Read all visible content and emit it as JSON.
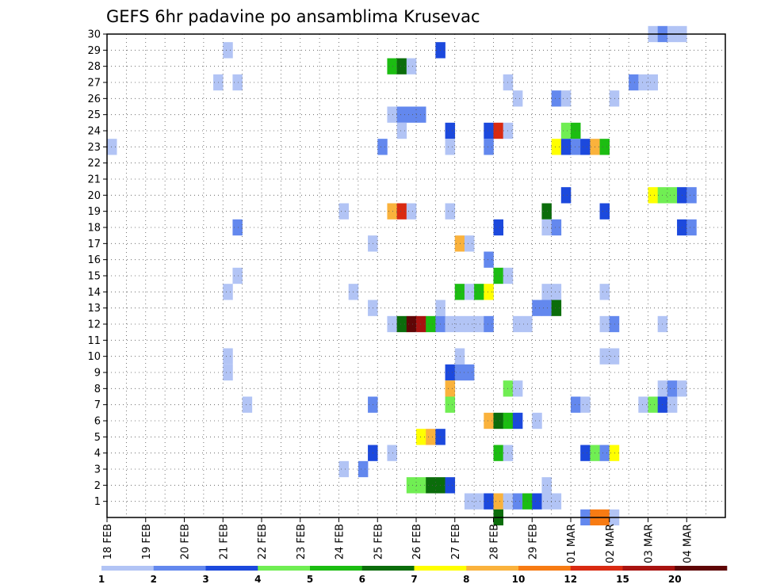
{
  "chart_data": {
    "type": "heatmap",
    "title": "GEFS 6hr padavine po ansamblima Krusevac",
    "xlabel": "",
    "ylabel": "",
    "x_ticks": [
      "18 FEB",
      "19 FEB",
      "20 FEB",
      "21 FEB",
      "22 FEB",
      "23 FEB",
      "24 FEB",
      "25 FEB",
      "26 FEB",
      "27 FEB",
      "28 FEB",
      "29 FEB",
      "01 MAR",
      "02 MAR",
      "03 MAR",
      "04 MAR"
    ],
    "y_ticks": [
      "1",
      "2",
      "3",
      "4",
      "5",
      "6",
      "7",
      "8",
      "9",
      "10",
      "11",
      "12",
      "13",
      "14",
      "15",
      "16",
      "17",
      "18",
      "19",
      "20",
      "21",
      "22",
      "23",
      "24",
      "25",
      "26",
      "27",
      "28",
      "29",
      "30"
    ],
    "xlim": [
      0,
      16
    ],
    "ylim": [
      0,
      30
    ],
    "time_step_days": 0.25,
    "member_axis": "y",
    "legend": {
      "placement": "bottom",
      "levels": [
        "1",
        "2",
        "3",
        "4",
        "5",
        "6",
        "7",
        "8",
        "10",
        "12",
        "15",
        "20"
      ],
      "colors": [
        "#b2c4f5",
        "#6388ee",
        "#1c49dd",
        "#70ee53",
        "#1cbd12",
        "#0b6d0b",
        "#ffff00",
        "#fab23c",
        "#f77b13",
        "#d92a12",
        "#a81310",
        "#5f0606"
      ]
    },
    "cells": [
      {
        "m": 30,
        "t": 14.0,
        "c": 1
      },
      {
        "m": 30,
        "t": 14.25,
        "c": 2
      },
      {
        "m": 30,
        "t": 14.5,
        "c": 1
      },
      {
        "m": 30,
        "t": 14.75,
        "c": 1
      },
      {
        "m": 29,
        "t": 3.0,
        "c": 1
      },
      {
        "m": 29,
        "t": 8.5,
        "c": 3
      },
      {
        "m": 28,
        "t": 7.25,
        "c": 5
      },
      {
        "m": 28,
        "t": 7.5,
        "c": 6
      },
      {
        "m": 28,
        "t": 7.75,
        "c": 1
      },
      {
        "m": 27,
        "t": 2.75,
        "c": 1
      },
      {
        "m": 27,
        "t": 3.25,
        "c": 1
      },
      {
        "m": 27,
        "t": 10.25,
        "c": 1
      },
      {
        "m": 27,
        "t": 13.5,
        "c": 2
      },
      {
        "m": 27,
        "t": 13.75,
        "c": 1
      },
      {
        "m": 27,
        "t": 14.0,
        "c": 1
      },
      {
        "m": 26,
        "t": 10.5,
        "c": 1
      },
      {
        "m": 26,
        "t": 11.5,
        "c": 2
      },
      {
        "m": 26,
        "t": 11.75,
        "c": 1
      },
      {
        "m": 26,
        "t": 13.0,
        "c": 1
      },
      {
        "m": 25,
        "t": 7.25,
        "c": 1
      },
      {
        "m": 25,
        "t": 7.5,
        "c": 2
      },
      {
        "m": 25,
        "t": 7.75,
        "c": 2
      },
      {
        "m": 25,
        "t": 8.0,
        "c": 2
      },
      {
        "m": 24,
        "t": 7.5,
        "c": 1
      },
      {
        "m": 24,
        "t": 8.75,
        "c": 3
      },
      {
        "m": 24,
        "t": 9.75,
        "c": 3
      },
      {
        "m": 24,
        "t": 10.0,
        "c": 10
      },
      {
        "m": 24,
        "t": 10.25,
        "c": 1
      },
      {
        "m": 24,
        "t": 11.75,
        "c": 4
      },
      {
        "m": 24,
        "t": 12.0,
        "c": 5
      },
      {
        "m": 23,
        "t": 0.0,
        "c": 1
      },
      {
        "m": 23,
        "t": 7.0,
        "c": 2
      },
      {
        "m": 23,
        "t": 8.75,
        "c": 1
      },
      {
        "m": 23,
        "t": 9.75,
        "c": 2
      },
      {
        "m": 23,
        "t": 11.5,
        "c": 7
      },
      {
        "m": 23,
        "t": 11.75,
        "c": 3
      },
      {
        "m": 23,
        "t": 12.0,
        "c": 2
      },
      {
        "m": 23,
        "t": 12.25,
        "c": 3
      },
      {
        "m": 23,
        "t": 12.5,
        "c": 8
      },
      {
        "m": 23,
        "t": 12.75,
        "c": 5
      },
      {
        "m": 20,
        "t": 11.75,
        "c": 3
      },
      {
        "m": 20,
        "t": 14.0,
        "c": 7
      },
      {
        "m": 20,
        "t": 14.25,
        "c": 4
      },
      {
        "m": 20,
        "t": 14.5,
        "c": 4
      },
      {
        "m": 20,
        "t": 14.75,
        "c": 3
      },
      {
        "m": 20,
        "t": 15.0,
        "c": 2
      },
      {
        "m": 19,
        "t": 6.0,
        "c": 1
      },
      {
        "m": 19,
        "t": 7.25,
        "c": 8
      },
      {
        "m": 19,
        "t": 7.5,
        "c": 10
      },
      {
        "m": 19,
        "t": 7.75,
        "c": 1
      },
      {
        "m": 19,
        "t": 8.75,
        "c": 1
      },
      {
        "m": 19,
        "t": 11.25,
        "c": 6
      },
      {
        "m": 19,
        "t": 12.75,
        "c": 3
      },
      {
        "m": 18,
        "t": 3.25,
        "c": 2
      },
      {
        "m": 18,
        "t": 10.0,
        "c": 3
      },
      {
        "m": 18,
        "t": 11.25,
        "c": 1
      },
      {
        "m": 18,
        "t": 11.5,
        "c": 2
      },
      {
        "m": 18,
        "t": 14.75,
        "c": 3
      },
      {
        "m": 18,
        "t": 15.0,
        "c": 2
      },
      {
        "m": 17,
        "t": 6.75,
        "c": 1
      },
      {
        "m": 17,
        "t": 9.0,
        "c": 8
      },
      {
        "m": 17,
        "t": 9.25,
        "c": 1
      },
      {
        "m": 16,
        "t": 9.75,
        "c": 2
      },
      {
        "m": 15,
        "t": 3.25,
        "c": 1
      },
      {
        "m": 15,
        "t": 10.0,
        "c": 5
      },
      {
        "m": 15,
        "t": 10.25,
        "c": 1
      },
      {
        "m": 14,
        "t": 3.0,
        "c": 1
      },
      {
        "m": 14,
        "t": 6.25,
        "c": 1
      },
      {
        "m": 14,
        "t": 9.0,
        "c": 5
      },
      {
        "m": 14,
        "t": 9.25,
        "c": 1
      },
      {
        "m": 14,
        "t": 9.5,
        "c": 5
      },
      {
        "m": 14,
        "t": 9.75,
        "c": 7
      },
      {
        "m": 14,
        "t": 11.25,
        "c": 1
      },
      {
        "m": 14,
        "t": 11.5,
        "c": 1
      },
      {
        "m": 14,
        "t": 12.75,
        "c": 1
      },
      {
        "m": 13,
        "t": 6.75,
        "c": 1
      },
      {
        "m": 13,
        "t": 8.5,
        "c": 1
      },
      {
        "m": 13,
        "t": 11.0,
        "c": 2
      },
      {
        "m": 13,
        "t": 11.25,
        "c": 2
      },
      {
        "m": 13,
        "t": 11.5,
        "c": 6
      },
      {
        "m": 12,
        "t": 7.25,
        "c": 1
      },
      {
        "m": 12,
        "t": 7.5,
        "c": 6
      },
      {
        "m": 12,
        "t": 7.75,
        "c": 12
      },
      {
        "m": 12,
        "t": 8.0,
        "c": 11
      },
      {
        "m": 12,
        "t": 8.25,
        "c": 5
      },
      {
        "m": 12,
        "t": 8.5,
        "c": 2
      },
      {
        "m": 12,
        "t": 8.75,
        "c": 1
      },
      {
        "m": 12,
        "t": 9.0,
        "c": 1
      },
      {
        "m": 12,
        "t": 9.25,
        "c": 1
      },
      {
        "m": 12,
        "t": 9.5,
        "c": 1
      },
      {
        "m": 12,
        "t": 9.75,
        "c": 2
      },
      {
        "m": 12,
        "t": 10.5,
        "c": 1
      },
      {
        "m": 12,
        "t": 10.75,
        "c": 1
      },
      {
        "m": 12,
        "t": 12.75,
        "c": 1
      },
      {
        "m": 12,
        "t": 13.0,
        "c": 2
      },
      {
        "m": 12,
        "t": 14.25,
        "c": 1
      },
      {
        "m": 10,
        "t": 3.0,
        "c": 1
      },
      {
        "m": 10,
        "t": 9.0,
        "c": 1
      },
      {
        "m": 10,
        "t": 12.75,
        "c": 1
      },
      {
        "m": 10,
        "t": 13.0,
        "c": 1
      },
      {
        "m": 9,
        "t": 3.0,
        "c": 1
      },
      {
        "m": 9,
        "t": 8.75,
        "c": 3
      },
      {
        "m": 9,
        "t": 9.0,
        "c": 2
      },
      {
        "m": 9,
        "t": 9.25,
        "c": 2
      },
      {
        "m": 8,
        "t": 8.75,
        "c": 8
      },
      {
        "m": 8,
        "t": 10.25,
        "c": 4
      },
      {
        "m": 8,
        "t": 10.5,
        "c": 1
      },
      {
        "m": 8,
        "t": 14.25,
        "c": 1
      },
      {
        "m": 8,
        "t": 14.5,
        "c": 2
      },
      {
        "m": 8,
        "t": 14.75,
        "c": 1
      },
      {
        "m": 7,
        "t": 3.5,
        "c": 1
      },
      {
        "m": 7,
        "t": 6.75,
        "c": 2
      },
      {
        "m": 7,
        "t": 8.75,
        "c": 4
      },
      {
        "m": 7,
        "t": 12.0,
        "c": 2
      },
      {
        "m": 7,
        "t": 12.25,
        "c": 1
      },
      {
        "m": 7,
        "t": 13.75,
        "c": 1
      },
      {
        "m": 7,
        "t": 14.0,
        "c": 4
      },
      {
        "m": 7,
        "t": 14.25,
        "c": 3
      },
      {
        "m": 7,
        "t": 14.5,
        "c": 1
      },
      {
        "m": 6,
        "t": 9.75,
        "c": 8
      },
      {
        "m": 6,
        "t": 10.0,
        "c": 6
      },
      {
        "m": 6,
        "t": 10.25,
        "c": 5
      },
      {
        "m": 6,
        "t": 10.5,
        "c": 3
      },
      {
        "m": 6,
        "t": 11.0,
        "c": 1
      },
      {
        "m": 5,
        "t": 8.0,
        "c": 7
      },
      {
        "m": 5,
        "t": 8.25,
        "c": 8
      },
      {
        "m": 5,
        "t": 8.5,
        "c": 3
      },
      {
        "m": 4,
        "t": 6.75,
        "c": 3
      },
      {
        "m": 4,
        "t": 7.25,
        "c": 1
      },
      {
        "m": 4,
        "t": 10.0,
        "c": 5
      },
      {
        "m": 4,
        "t": 10.25,
        "c": 1
      },
      {
        "m": 4,
        "t": 12.25,
        "c": 3
      },
      {
        "m": 4,
        "t": 12.5,
        "c": 4
      },
      {
        "m": 4,
        "t": 12.75,
        "c": 2
      },
      {
        "m": 4,
        "t": 13.0,
        "c": 7
      },
      {
        "m": 3,
        "t": 6.0,
        "c": 1
      },
      {
        "m": 3,
        "t": 6.5,
        "c": 2
      },
      {
        "m": 2,
        "t": 7.75,
        "c": 4
      },
      {
        "m": 2,
        "t": 8.0,
        "c": 4
      },
      {
        "m": 2,
        "t": 8.25,
        "c": 6
      },
      {
        "m": 2,
        "t": 8.5,
        "c": 6
      },
      {
        "m": 2,
        "t": 8.75,
        "c": 3
      },
      {
        "m": 2,
        "t": 11.25,
        "c": 1
      },
      {
        "m": 1,
        "t": 9.25,
        "c": 1
      },
      {
        "m": 1,
        "t": 9.5,
        "c": 1
      },
      {
        "m": 1,
        "t": 9.75,
        "c": 3
      },
      {
        "m": 1,
        "t": 10.0,
        "c": 8
      },
      {
        "m": 1,
        "t": 10.25,
        "c": 1
      },
      {
        "m": 1,
        "t": 10.5,
        "c": 2
      },
      {
        "m": 1,
        "t": 10.75,
        "c": 5
      },
      {
        "m": 1,
        "t": 11.0,
        "c": 3
      },
      {
        "m": 1,
        "t": 11.25,
        "c": 1
      },
      {
        "m": 1,
        "t": 11.5,
        "c": 1
      },
      {
        "m": 0,
        "t": 10.0,
        "c": 6
      },
      {
        "m": 0,
        "t": 12.25,
        "c": 2
      },
      {
        "m": 0,
        "t": 12.5,
        "c": 9
      },
      {
        "m": 0,
        "t": 12.75,
        "c": 9
      },
      {
        "m": 0,
        "t": 13.0,
        "c": 1
      }
    ]
  }
}
